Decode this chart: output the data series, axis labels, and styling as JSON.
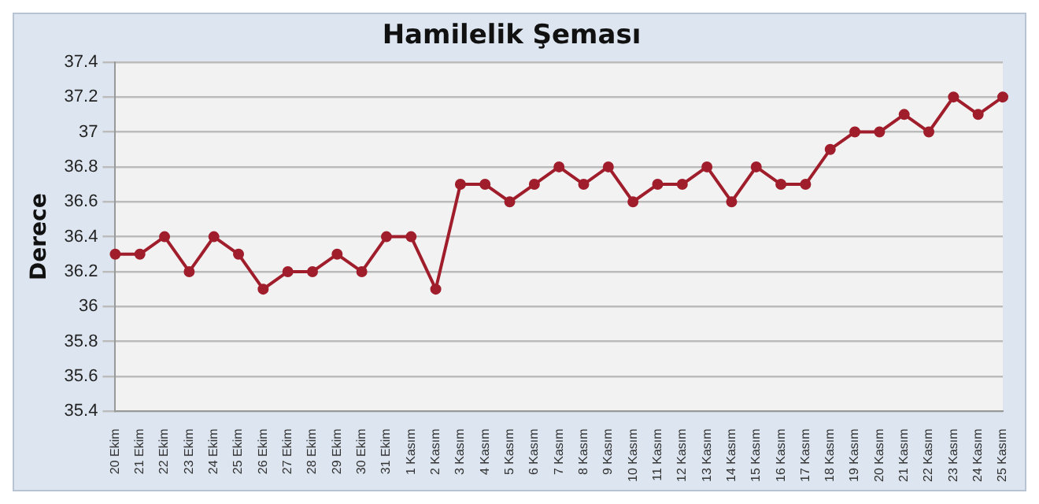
{
  "chart_data": {
    "type": "line",
    "title": "Hamilelik Şeması",
    "ylabel": "Derece",
    "categories": [
      "20 Ekim",
      "21 Ekim",
      "22 Ekim",
      "23 Ekim",
      "24 Ekim",
      "25 Ekim",
      "26 Ekim",
      "27 Ekim",
      "28 Ekim",
      "29 Ekim",
      "30 Ekim",
      "31 Ekim",
      "1 Kasım",
      "2 Kasım",
      "3 Kasım",
      "4 Kasım",
      "5 Kasım",
      "6 Kasım",
      "7 Kasım",
      "8 Kasım",
      "9 Kasım",
      "10 Kasım",
      "11 Kasım",
      "12 Kasım",
      "13 Kasım",
      "14 Kasım",
      "15 Kasım",
      "16 Kasım",
      "17 Kasım",
      "18 Kasım",
      "19 Kasım",
      "20 Kasım",
      "21 Kasım",
      "22 Kasım",
      "23 Kasım",
      "24 Kasım",
      "25 Kasım"
    ],
    "series": [
      {
        "color": "#a01e2c",
        "values": [
          36.3,
          36.3,
          36.4,
          36.2,
          36.4,
          36.3,
          36.1,
          36.2,
          36.2,
          36.3,
          36.2,
          36.4,
          36.4,
          36.1,
          36.7,
          36.7,
          36.6,
          36.7,
          36.8,
          36.7,
          36.8,
          36.6,
          36.7,
          36.7,
          36.8,
          36.6,
          36.8,
          36.7,
          36.7,
          36.9,
          37.0,
          37.0,
          37.1,
          37.0,
          37.2,
          37.1,
          37.2
        ]
      }
    ],
    "ylim": [
      35.4,
      37.4
    ],
    "yticks": [
      35.4,
      35.6,
      35.8,
      36,
      36.2,
      36.4,
      36.6,
      36.8,
      37,
      37.2,
      37.4
    ],
    "grid": "y",
    "legend": false,
    "marker": "circle",
    "line_style": "solid"
  }
}
